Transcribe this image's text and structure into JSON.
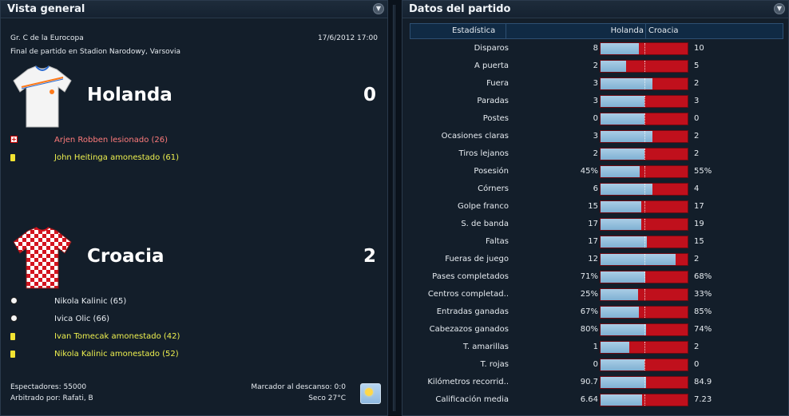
{
  "overview": {
    "title": "Vista general",
    "competition": "Gr. C de la Eurocopa",
    "datetime": "17/6/2012 17:00",
    "venue": "Final de partido en Stadion Narodowy, Varsovia",
    "home": {
      "name": "Holanda",
      "score": "0",
      "events": [
        {
          "icon": "injury-icon",
          "text": "Arjen Robben lesionado (26)",
          "color": "#ff7b7b"
        },
        {
          "icon": "yellow-card-icon",
          "text": "John Heitinga amonestado (61)",
          "color": "#eef04f"
        }
      ]
    },
    "away": {
      "name": "Croacia",
      "score": "2",
      "events": [
        {
          "icon": "ball-icon",
          "text": "Nikola Kalinic (65)",
          "color": "#e8edf2"
        },
        {
          "icon": "ball-icon",
          "text": "Ivica Olic (66)",
          "color": "#e8edf2"
        },
        {
          "icon": "yellow-card-icon",
          "text": "Ivan Tomecak amonestado (42)",
          "color": "#eef04f"
        },
        {
          "icon": "yellow-card-icon",
          "text": "Nikola Kalinic amonestado (52)",
          "color": "#eef04f"
        }
      ]
    },
    "attendance": "Espectadores: 55000",
    "referee": "Arbitrado por: Rafati, B",
    "halftime": "Marcador al descanso: 0:0",
    "weather": "Seco 27°C",
    "weather_icon": "sunny-icon"
  },
  "stats": {
    "title": "Datos del partido",
    "col_stat": "Estadística",
    "col_home": "Holanda",
    "col_away": "Croacia",
    "home_color": "#8dbcdc",
    "away_color": "#c0101c",
    "rows": [
      {
        "label": "Disparos",
        "home": "8",
        "away": "10",
        "home_share": 0.44
      },
      {
        "label": "A puerta",
        "home": "2",
        "away": "5",
        "home_share": 0.29
      },
      {
        "label": "Fuera",
        "home": "3",
        "away": "2",
        "home_share": 0.6
      },
      {
        "label": "Paradas",
        "home": "3",
        "away": "3",
        "home_share": 0.5
      },
      {
        "label": "Postes",
        "home": "0",
        "away": "0",
        "home_share": 0.5
      },
      {
        "label": "Ocasiones claras",
        "home": "3",
        "away": "2",
        "home_share": 0.6
      },
      {
        "label": "Tiros lejanos",
        "home": "2",
        "away": "2",
        "home_share": 0.5
      },
      {
        "label": "Posesión",
        "home": "45%",
        "away": "55%",
        "home_share": 0.45
      },
      {
        "label": "Córners",
        "home": "6",
        "away": "4",
        "home_share": 0.6
      },
      {
        "label": "Golpe franco",
        "home": "15",
        "away": "17",
        "home_share": 0.47
      },
      {
        "label": "S. de banda",
        "home": "17",
        "away": "19",
        "home_share": 0.47
      },
      {
        "label": "Faltas",
        "home": "17",
        "away": "15",
        "home_share": 0.53
      },
      {
        "label": "Fueras de juego",
        "home": "12",
        "away": "2",
        "home_share": 0.86
      },
      {
        "label": "Pases completados",
        "home": "71%",
        "away": "68%",
        "home_share": 0.51
      },
      {
        "label": "Centros completad..",
        "home": "25%",
        "away": "33%",
        "home_share": 0.43
      },
      {
        "label": "Entradas ganadas",
        "home": "67%",
        "away": "85%",
        "home_share": 0.44
      },
      {
        "label": "Cabezazos ganados",
        "home": "80%",
        "away": "74%",
        "home_share": 0.52
      },
      {
        "label": "T. amarillas",
        "home": "1",
        "away": "2",
        "home_share": 0.33
      },
      {
        "label": "T. rojas",
        "home": "0",
        "away": "0",
        "home_share": 0.5
      },
      {
        "label": "Kilómetros recorrid..",
        "home": "90.7",
        "away": "84.9",
        "home_share": 0.52
      },
      {
        "label": "Calificación media",
        "home": "6.64",
        "away": "7.23",
        "home_share": 0.48
      }
    ]
  }
}
